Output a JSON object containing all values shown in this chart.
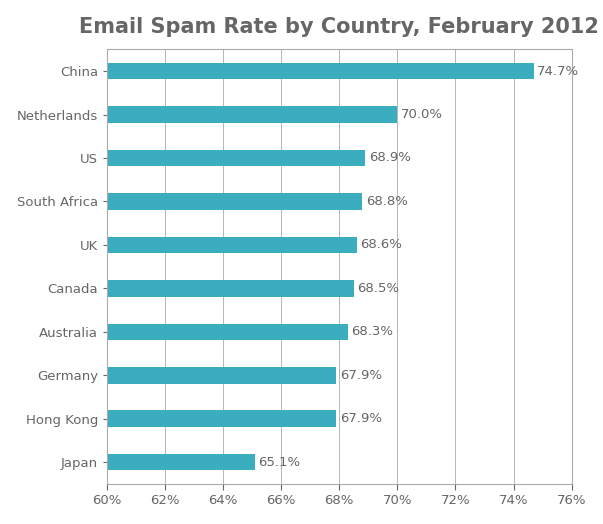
{
  "title": "Email Spam Rate by Country, February 2012",
  "categories": [
    "Japan",
    "Hong Kong",
    "Germany",
    "Australia",
    "Canada",
    "UK",
    "South Africa",
    "US",
    "Netherlands",
    "China"
  ],
  "values": [
    65.1,
    67.9,
    67.9,
    68.3,
    68.5,
    68.6,
    68.8,
    68.9,
    70.0,
    74.7
  ],
  "labels": [
    "65.1%",
    "67.9%",
    "67.9%",
    "68.3%",
    "68.5%",
    "68.6%",
    "68.8%",
    "68.9%",
    "70.0%",
    "74.7%"
  ],
  "bar_color": "#3AADBE",
  "xlim_min": 60,
  "xlim_max": 76,
  "xtick_values": [
    60,
    62,
    64,
    66,
    68,
    70,
    72,
    74,
    76
  ],
  "title_fontsize": 15,
  "label_fontsize": 9.5,
  "tick_fontsize": 9.5,
  "background_color": "#FFFFFF",
  "grid_color": "#AAAAAA",
  "text_color": "#666666",
  "bar_height": 0.38,
  "spine_color": "#AAAAAA",
  "figsize": [
    6.03,
    5.24
  ],
  "dpi": 100
}
